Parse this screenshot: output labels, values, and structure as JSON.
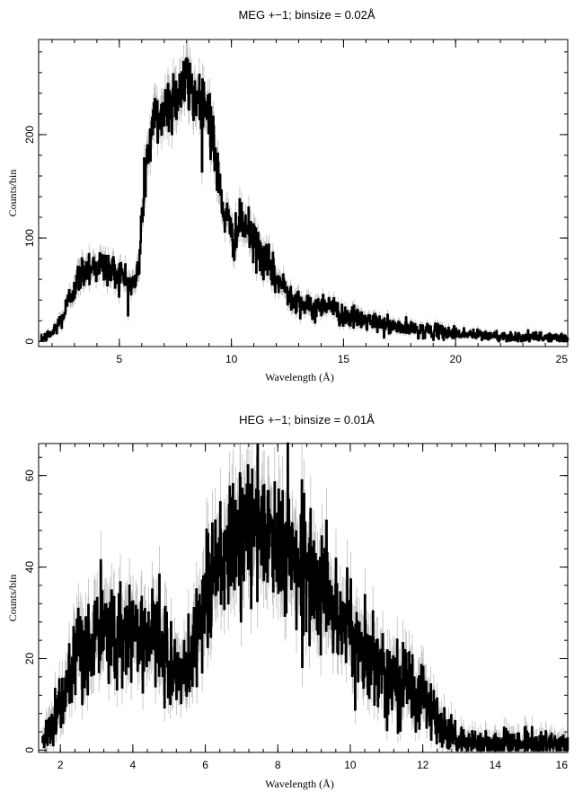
{
  "chart_data": [
    {
      "type": "line",
      "title": "MEG +−1; binsize = 0.02Å",
      "xlabel": "Wavelength (Å)",
      "ylabel": "Counts/bin",
      "xlim": [
        1.4,
        25
      ],
      "ylim": [
        -5,
        292
      ],
      "xticks": [
        5,
        10,
        15,
        20,
        25
      ],
      "yticks": [
        0,
        100,
        200
      ],
      "xtick_labels": [
        "5",
        "10",
        "15",
        "20",
        "25"
      ],
      "ytick_labels": [
        "0",
        "100",
        "200"
      ],
      "grid": false,
      "series": [
        {
          "style": "histogram with gray error bars",
          "x": [
            1.5,
            2.0,
            2.5,
            3.0,
            3.5,
            4.0,
            4.5,
            5.0,
            5.5,
            5.7,
            5.9,
            6.0,
            6.2,
            6.5,
            7.0,
            7.5,
            8.0,
            8.5,
            9.0,
            9.2,
            9.5,
            10.0,
            10.5,
            11.0,
            11.5,
            12.0,
            12.5,
            13.0,
            13.5,
            14.0,
            14.3,
            14.6,
            15.0,
            16.0,
            17.0,
            18.0,
            19.0,
            20.0,
            21.0,
            22.0,
            23.0,
            24.0,
            25.0
          ],
          "y": [
            2,
            8,
            25,
            55,
            72,
            74,
            70,
            65,
            55,
            55,
            82,
            120,
            175,
            210,
            225,
            240,
            250,
            235,
            225,
            190,
            140,
            100,
            115,
            95,
            78,
            60,
            48,
            40,
            30,
            35,
            38,
            30,
            25,
            20,
            15,
            12,
            10,
            8,
            6,
            5,
            4,
            4,
            3
          ]
        }
      ]
    },
    {
      "type": "line",
      "title": "HEG +−1; binsize = 0.01Å",
      "xlabel": "Wavelength (Å)",
      "ylabel": "Counts/bin",
      "xlim": [
        1.4,
        16
      ],
      "ylim": [
        -0.5,
        67
      ],
      "xticks": [
        2,
        4,
        6,
        8,
        10,
        12,
        14,
        16
      ],
      "yticks": [
        0,
        20,
        40,
        60
      ],
      "xtick_labels": [
        "2",
        "4",
        "6",
        "8",
        "10",
        "12",
        "14",
        "16"
      ],
      "ytick_labels": [
        "0",
        "20",
        "40",
        "60"
      ],
      "grid": false,
      "series": [
        {
          "style": "histogram with gray error bars",
          "x": [
            1.5,
            2.0,
            2.5,
            3.0,
            3.5,
            4.0,
            4.5,
            5.0,
            5.3,
            5.6,
            5.8,
            6.0,
            6.5,
            7.0,
            7.5,
            8.0,
            8.5,
            9.0,
            9.5,
            10.0,
            10.5,
            11.0,
            11.5,
            12.0,
            12.3,
            12.6,
            13.0,
            13.5,
            14.0,
            15.0,
            16.0
          ],
          "y": [
            2,
            10,
            20,
            25,
            26,
            26,
            25,
            20,
            15,
            20,
            28,
            35,
            42,
            47,
            48,
            45,
            42,
            38,
            32,
            25,
            20,
            17,
            15,
            12,
            8,
            4,
            2,
            1.5,
            1.5,
            1.5,
            1
          ]
        }
      ]
    }
  ]
}
